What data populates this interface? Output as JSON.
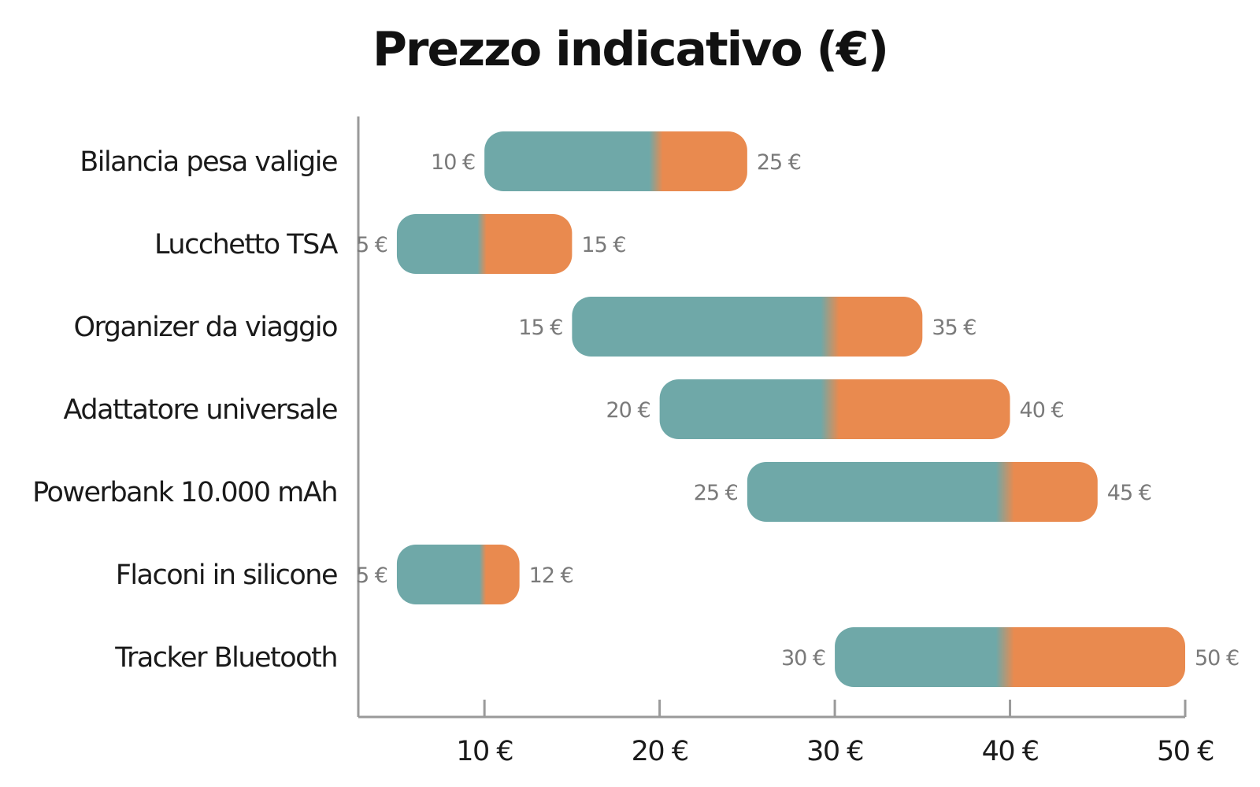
{
  "chart_data": {
    "type": "bar",
    "title": "Prezzo indicativo (€)",
    "xlabel": "",
    "ylabel": "",
    "xlim": [
      2.8,
      50
    ],
    "x_ticks": [
      10,
      20,
      30,
      40,
      50
    ],
    "x_tick_labels": [
      "10 €",
      "20 €",
      "30 €",
      "40 €",
      "50 €"
    ],
    "grid": false,
    "colors": {
      "low": "#6fa8a8",
      "high": "#e98a4f",
      "axis": "#9a9a9a"
    },
    "categories": [
      "Bilancia pesa valigie",
      "Lucchetto TSA",
      "Organizer da viaggio",
      "Adattatore universale",
      "Powerbank 10.000 mAh",
      "Flaconi in silicone",
      "Tracker Bluetooth"
    ],
    "ranges": [
      {
        "min": 10,
        "split": 20,
        "max": 25,
        "min_label": "10 €",
        "max_label": "25 €"
      },
      {
        "min": 5,
        "split": 10,
        "max": 15,
        "min_label": "5 €",
        "max_label": "15 €"
      },
      {
        "min": 15,
        "split": 30,
        "max": 35,
        "min_label": "15 €",
        "max_label": "35 €"
      },
      {
        "min": 20,
        "split": 30,
        "max": 40,
        "min_label": "20 €",
        "max_label": "40 €"
      },
      {
        "min": 25,
        "split": 40,
        "max": 45,
        "min_label": "25 €",
        "max_label": "45 €"
      },
      {
        "min": 5,
        "split": 10,
        "max": 12,
        "min_label": "5 €",
        "max_label": "12 €"
      },
      {
        "min": 30,
        "split": 40,
        "max": 50,
        "min_label": "30 €",
        "max_label": "50 €"
      }
    ]
  }
}
